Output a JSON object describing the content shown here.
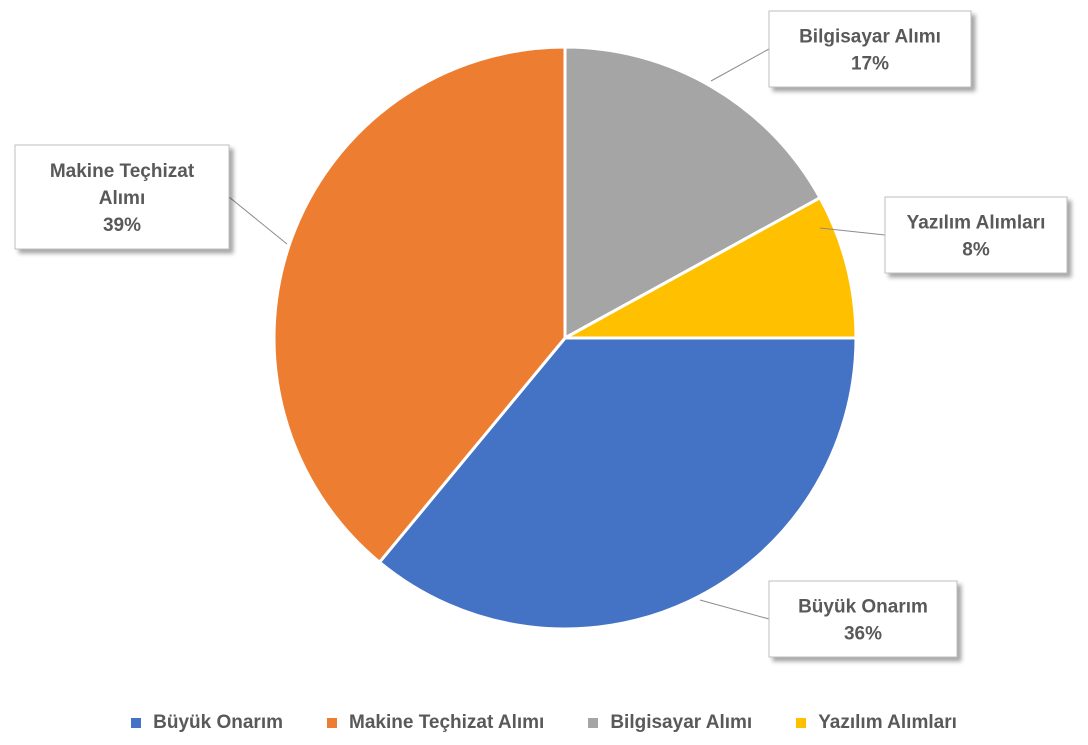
{
  "chart_data": {
    "type": "pie",
    "title": "",
    "slices": [
      {
        "label": "Büyük Onarım",
        "value": 36,
        "display": "36%",
        "color": "#4472C4"
      },
      {
        "label": "Makine Teçhizat Alımı",
        "value": 39,
        "display": "39%",
        "color": "#ED7D31"
      },
      {
        "label": "Bilgisayar Alımı",
        "value": 17,
        "display": "17%",
        "color": "#A5A5A5"
      },
      {
        "label": "Yazılım Alımları",
        "value": 8,
        "display": "8%",
        "color": "#FFC000"
      }
    ],
    "legend_position": "bottom",
    "data_labels": "callouts with category name and percentage"
  },
  "legend": {
    "items": [
      {
        "label": "Büyük Onarım",
        "color": "#4472C4"
      },
      {
        "label": "Makine Teçhizat Alımı",
        "color": "#ED7D31"
      },
      {
        "label": "Bilgisayar Alımı",
        "color": "#A5A5A5"
      },
      {
        "label": "Yazılım Alımları",
        "color": "#FFC000"
      }
    ]
  }
}
